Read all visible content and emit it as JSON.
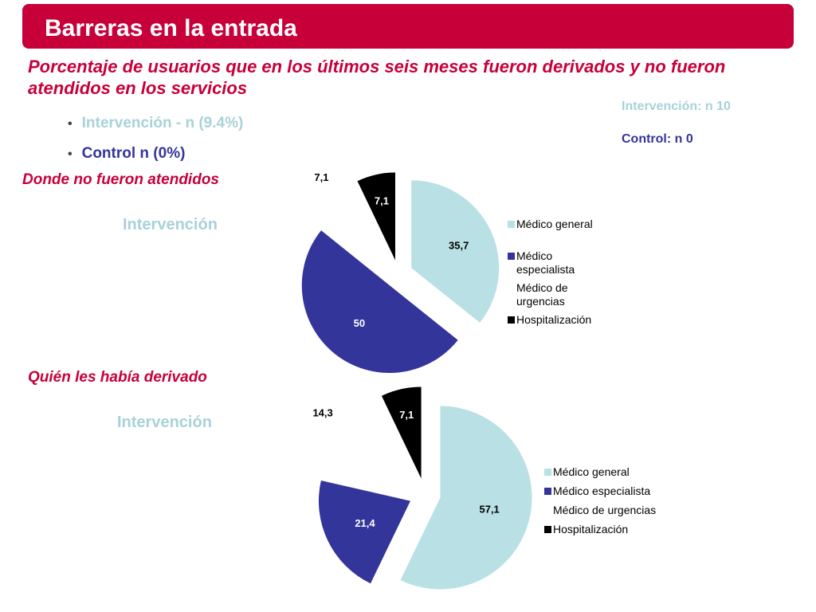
{
  "header": {
    "title": "Barreras en la entrada"
  },
  "subtitle": "Porcentaje de usuarios que en los últimos seis meses fueron derivados y no fueron atendidos en los servicios",
  "bullets": [
    {
      "text": "Intervención - n (9.4%)",
      "color": "#a8d2d9"
    },
    {
      "text": "Control n (0%)",
      "color": "#33359a"
    }
  ],
  "sample_sizes": {
    "intervention": "Intervención: n 10",
    "control": "Control: n 0"
  },
  "colors": {
    "accent": "#c7003a",
    "medico_general": "#b9e0e4",
    "medico_especialista": "#33359a",
    "medico_urgencias": "#ffffff",
    "hospitalizacion": "#000000"
  },
  "chart_data": [
    {
      "type": "pie",
      "section_title": "Donde no fueron atendidos",
      "group_label": "Intervención",
      "categories": [
        "Médico general",
        "Médico especialista",
        "Médico de urgencias",
        "Hospitalización"
      ],
      "legend_display": [
        "Médico general",
        "Médico especialista",
        "Médico de urgencias",
        "Hospitalización"
      ],
      "values": [
        35.7,
        50,
        7.1,
        7.1
      ],
      "labels": [
        "35,7",
        "50",
        "7,1",
        "7,1"
      ],
      "exploded": true,
      "legend_position": "right"
    },
    {
      "type": "pie",
      "section_title": "Quién les había derivado",
      "group_label": "Intervención",
      "categories": [
        "Médico general",
        "Médico especialista",
        "Médico de urgencias",
        "Hospitalización"
      ],
      "legend_display": [
        "Médico general",
        "Médico especialista",
        "Médico de urgencias",
        "Hospitalización"
      ],
      "values": [
        57.1,
        21.4,
        14.3,
        7.1
      ],
      "labels": [
        "57,1",
        "21,4",
        "14,3",
        "7,1"
      ],
      "exploded": true,
      "legend_position": "right"
    }
  ]
}
